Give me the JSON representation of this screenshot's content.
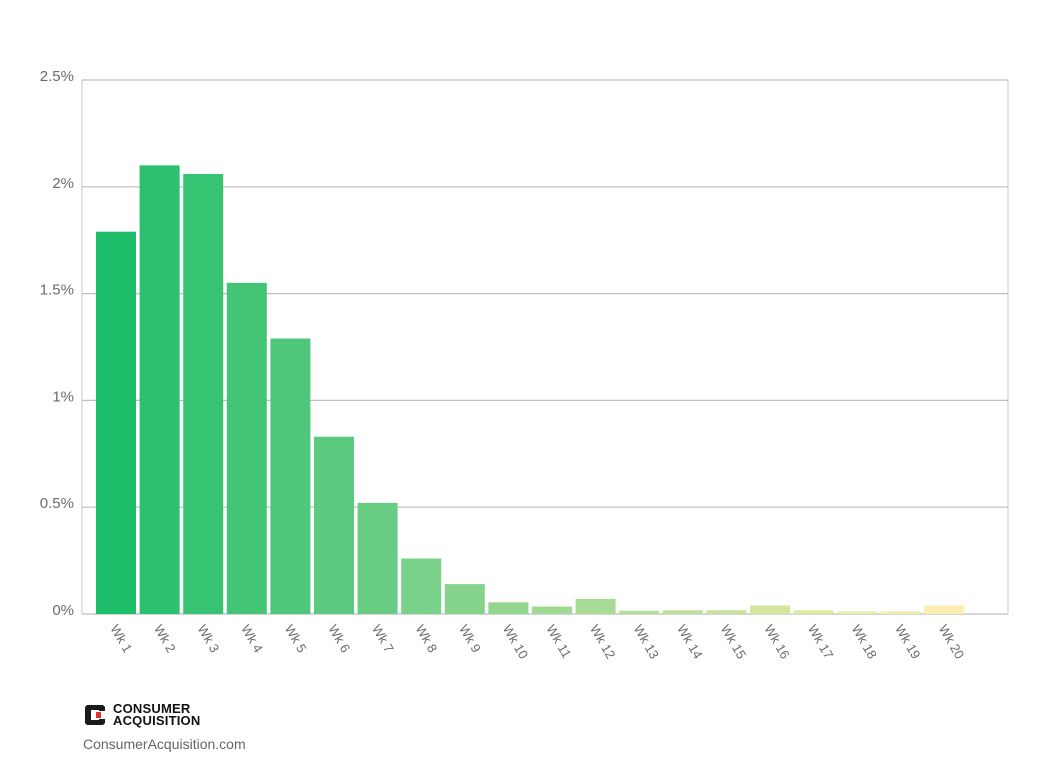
{
  "chart_data": {
    "type": "bar",
    "title": "",
    "xlabel": "",
    "ylabel": "",
    "categories": [
      "Wk 1",
      "Wk 2",
      "Wk 3",
      "Wk 4",
      "Wk 5",
      "Wk 6",
      "Wk 7",
      "Wk 8",
      "Wk 9",
      "Wk 10",
      "Wk 11",
      "Wk 12",
      "Wk 13",
      "Wk 14",
      "Wk 15",
      "Wk 16",
      "Wk 17",
      "Wk 18",
      "Wk 19",
      "Wk 20"
    ],
    "values": [
      1.79,
      2.1,
      2.06,
      1.55,
      1.29,
      0.83,
      0.52,
      0.26,
      0.14,
      0.055,
      0.035,
      0.07,
      0.015,
      0.018,
      0.018,
      0.04,
      0.018,
      0.012,
      0.012,
      0.04
    ],
    "colors": [
      "#1fbe6a",
      "#2bc16f",
      "#36c372",
      "#44c576",
      "#4fc77a",
      "#5bca7e",
      "#68cd83",
      "#7ad189",
      "#86d48c",
      "#93d68f",
      "#a0d992",
      "#a8db95",
      "#b3dd98",
      "#bfe09b",
      "#c8e29c",
      "#d3e59f",
      "#ddeaa3",
      "#e7eca6",
      "#f0eea9",
      "#fbefb0"
    ],
    "ylim": [
      0,
      2.5
    ],
    "yticks": [
      0,
      0.5,
      1,
      1.5,
      2,
      2.5
    ],
    "ytick_labels": [
      "0%",
      "0.5%",
      "1%",
      "1.5%",
      "2%",
      "2.5%"
    ],
    "grid": true,
    "legend": "none"
  },
  "brand": {
    "name_line1": "CONSUMER",
    "name_line2": "ACQUISITION",
    "url": "ConsumerAcquisition.com",
    "colors": {
      "dark": "#1a1a1a",
      "accent": "#e63329"
    }
  }
}
